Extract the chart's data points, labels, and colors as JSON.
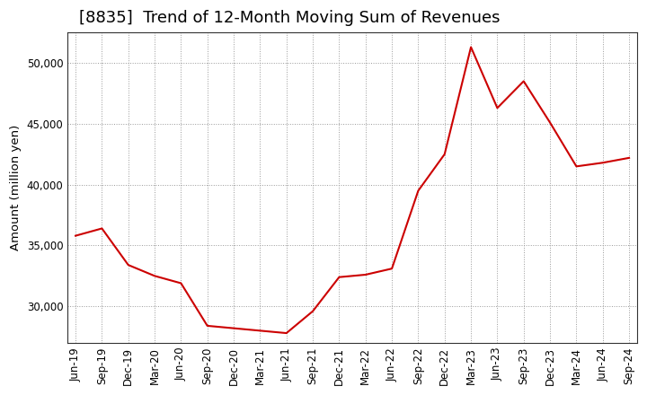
{
  "title": "[8835]  Trend of 12-Month Moving Sum of Revenues",
  "ylabel": "Amount (million yen)",
  "line_color": "#cc0000",
  "background_color": "#ffffff",
  "plot_bg_color": "#ffffff",
  "grid_color": "#999999",
  "labels": [
    "Jun-19",
    "Sep-19",
    "Dec-19",
    "Mar-20",
    "Jun-20",
    "Sep-20",
    "Dec-20",
    "Mar-21",
    "Jun-21",
    "Sep-21",
    "Dec-21",
    "Mar-22",
    "Jun-22",
    "Sep-22",
    "Dec-22",
    "Mar-23",
    "Jun-23",
    "Sep-23",
    "Dec-23",
    "Mar-24",
    "Jun-24",
    "Sep-24"
  ],
  "values": [
    35800,
    36400,
    33400,
    32500,
    31900,
    28400,
    28200,
    28000,
    27800,
    29600,
    32400,
    32600,
    33100,
    39500,
    42500,
    51300,
    46300,
    48500,
    45100,
    41500,
    41800,
    42200
  ],
  "ylim": [
    27000,
    52500
  ],
  "yticks": [
    30000,
    35000,
    40000,
    45000,
    50000
  ],
  "title_fontsize": 13,
  "label_fontsize": 9.5,
  "tick_fontsize": 8.5
}
